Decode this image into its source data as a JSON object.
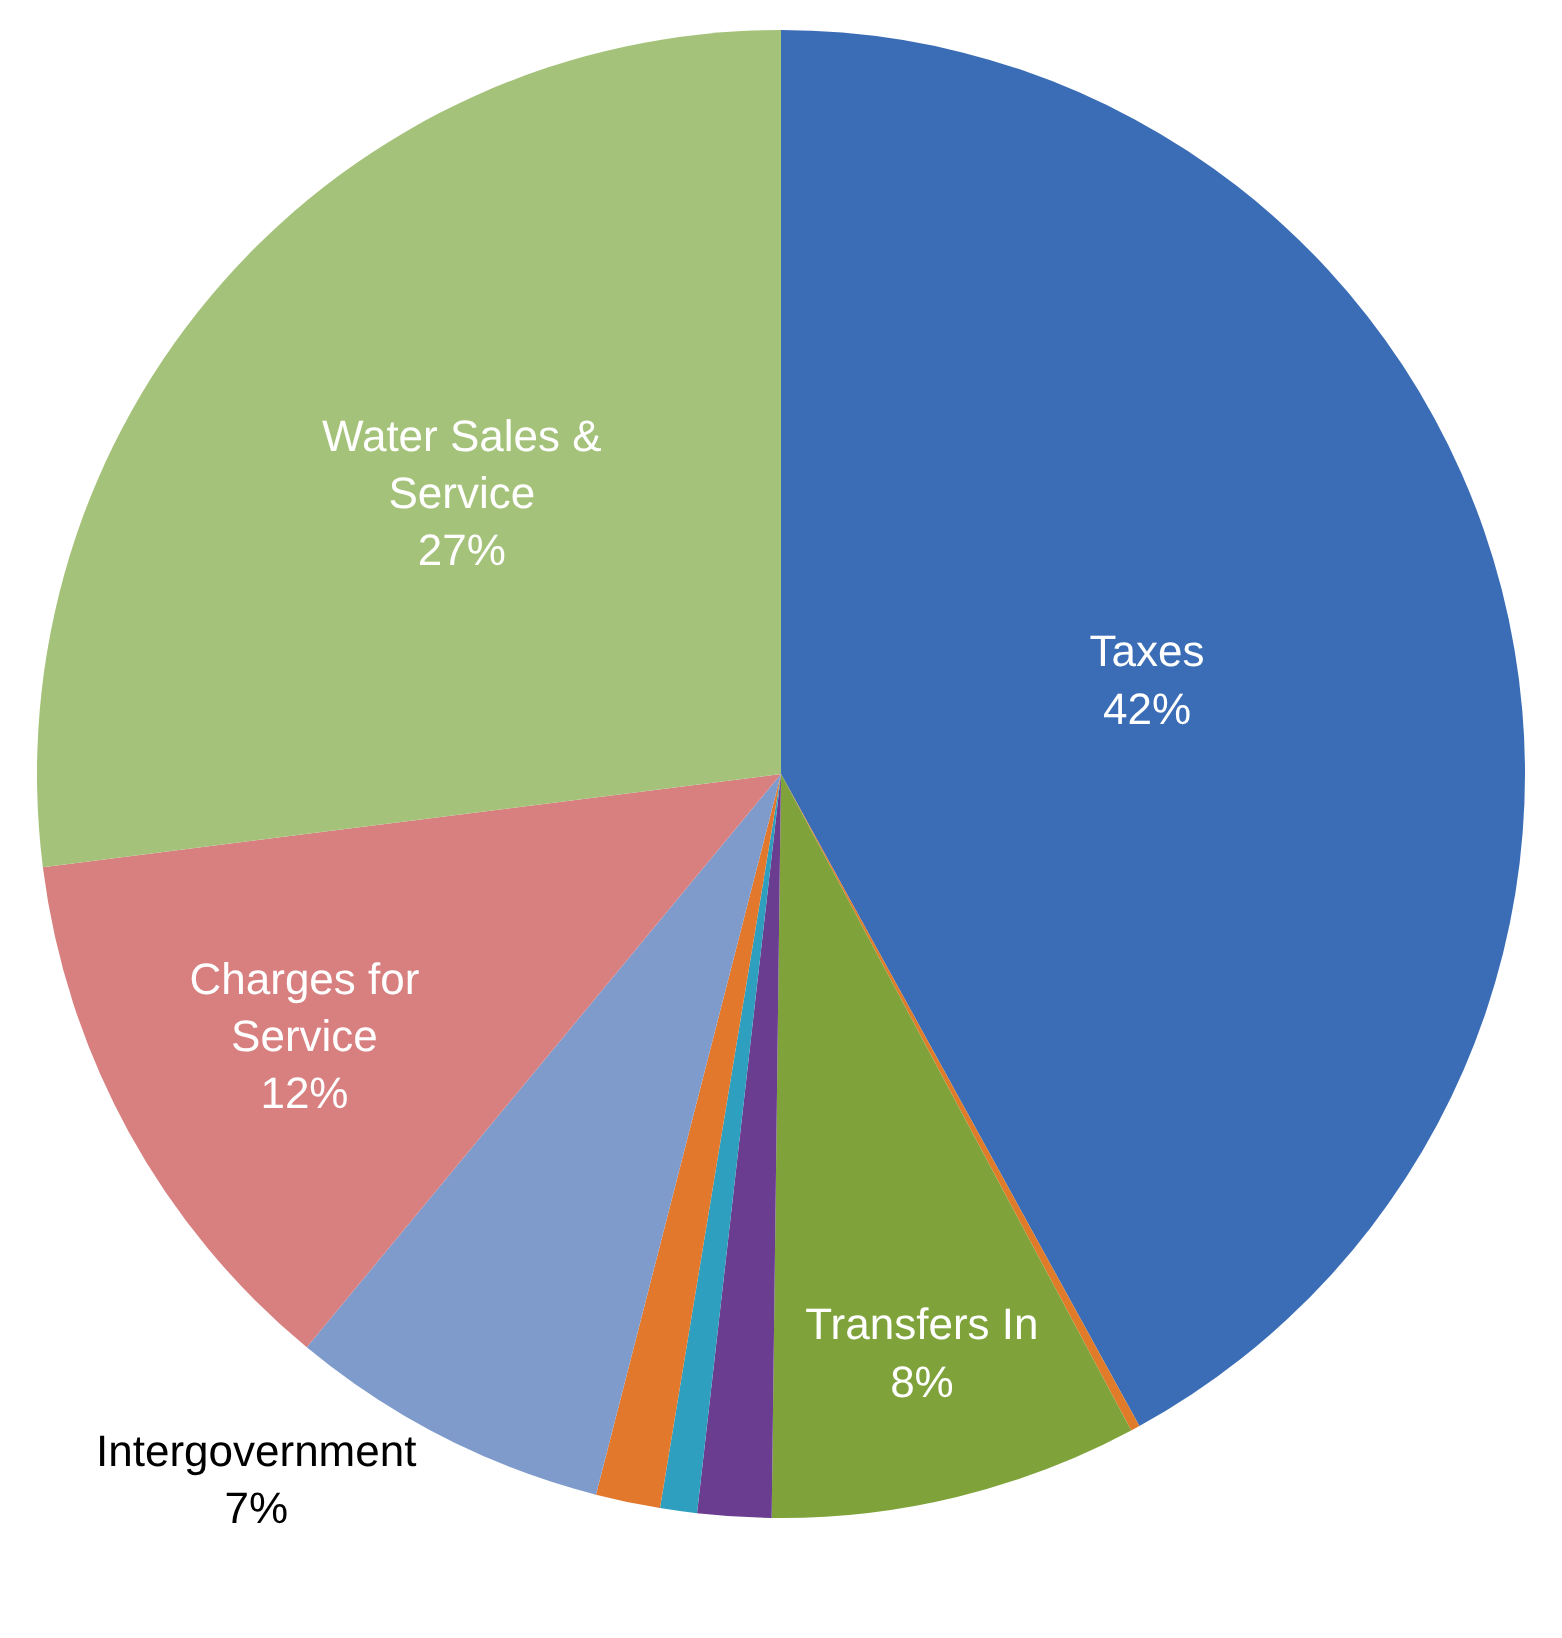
{
  "chart_data": {
    "type": "pie",
    "categories": [
      "Taxes",
      null,
      "Transfers In",
      null,
      null,
      null,
      "Intergovernment",
      "Charges for Service",
      "Water Sales & Service"
    ],
    "values": [
      42,
      0.2,
      8,
      1.6,
      0.8,
      1.4,
      7,
      12,
      27
    ],
    "colors": [
      "#3a6db5",
      "#e07b2a",
      "#7fa33a",
      "#6a3d91",
      "#2e9fbf",
      "#e2782b",
      "#7f9bcc",
      "#d87f80",
      "#a5c27a"
    ],
    "value_labels": [
      "42%",
      null,
      "8%",
      null,
      null,
      null,
      "7%",
      "12%",
      "27%"
    ]
  }
}
